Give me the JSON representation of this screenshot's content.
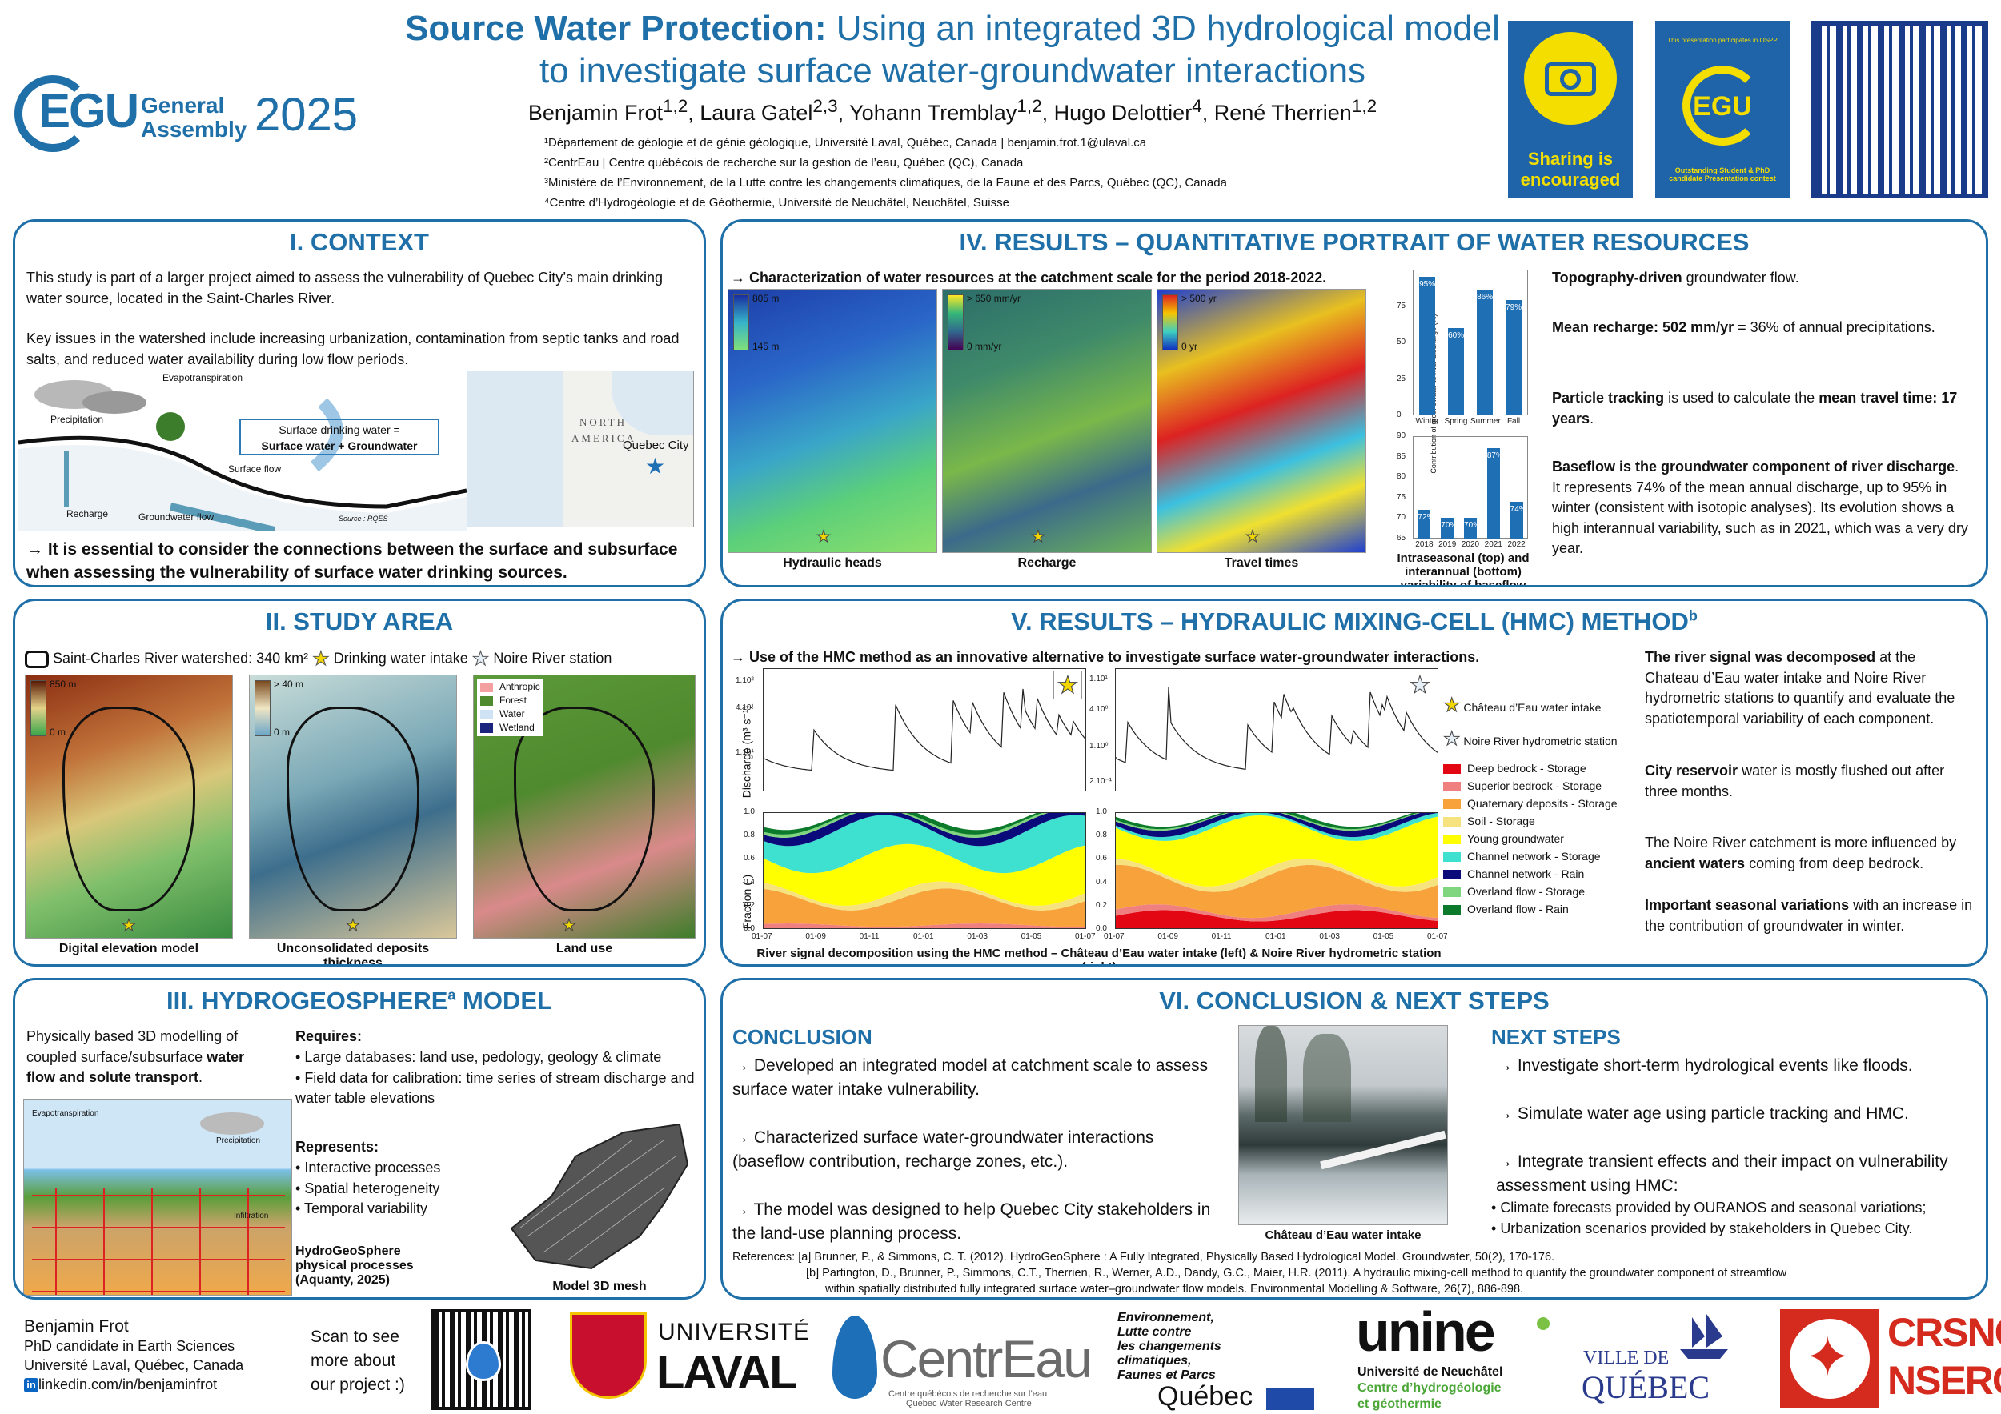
{
  "header": {
    "title_strong": "Source Water Protection:",
    "title_rest_1": "Using an integrated 3D hydrological model",
    "title_line_2": "to investigate surface water-groundwater interactions",
    "authors_html": "Benjamin Frot<sup>1,2</sup>, Laura Gatel<sup>2,3</sup>, Yohann Tremblay<sup>1,2</sup>, Hugo Delottier<sup>4</sup>, René Therrien<sup>1,2</sup>",
    "affiliations": [
      "¹Département de géologie et de génie géologique, Université Laval, Québec, Canada | benjamin.frot.1@ulaval.ca",
      "²CentrEau | Centre québécois de recherche sur la gestion de l’eau, Québec (QC), Canada",
      "³Ministère de l’Environnement, de la Lutte contre les changements climatiques, de la Faune et des Parcs, Québec (QC), Canada",
      "⁴Centre d’Hydrogéologie et de Géothermie, Université de Neuchâtel, Neuchâtel, Suisse"
    ],
    "egu_logo": {
      "text": "EGU",
      "sub1": "General",
      "sub2": "Assembly",
      "year": "2025"
    },
    "badge1": {
      "line1": "Sharing is",
      "line2": "encouraged",
      "icon": "camera-icon"
    },
    "badge2": {
      "top": "This presentation participates in OSPP",
      "mid": "EGU",
      "bottom": "Outstanding Student & PhD candidate Presentation contest"
    },
    "qr_icon": "qr-code-icon"
  },
  "context": {
    "title": "I. CONTEXT",
    "p1": "This study is part of a larger project aimed to assess the vulnerability of Quebec City’s main drinking water source, located in the Saint-Charles River.",
    "p2": "Key issues in the watershed include increasing urbanization, contamination from septic tanks and road salts, and reduced water availability during low flow periods.",
    "schema": {
      "evapotranspiration": "Evapotranspiration",
      "precipitation": "Precipitation",
      "recharge": "Recharge",
      "surface_flow": "Surface flow",
      "groundwater_flow": "Groundwater flow",
      "source": "Source : RQES",
      "box_line1": "Surface drinking water =",
      "box_line2": "Surface water + Groundwater"
    },
    "map": {
      "label1": "NORTH",
      "label2": "AMERICA",
      "city": "Quebec City"
    },
    "conclusion": "→ It is essential to consider the connections between the surface and subsurface when assessing the vulnerability of surface water drinking sources."
  },
  "study": {
    "title": "II. STUDY AREA",
    "legend_watershed": "Saint-Charles River watershed: 340 km²",
    "legend_intake": "Drinking water intake",
    "legend_station": "Noire River station",
    "maps": [
      {
        "caption": "Digital elevation model",
        "top": "850 m",
        "bottom": "0 m"
      },
      {
        "caption": "Unconsolidated deposits thickness",
        "top": "> 40 m",
        "bottom": "0 m"
      },
      {
        "caption": "Land use",
        "classes": [
          "Anthropic",
          "Forest",
          "Water",
          "Wetland"
        ],
        "colors": [
          "#f4a0a0",
          "#4f8a2e",
          "#cfe3f4",
          "#1a237e"
        ]
      }
    ]
  },
  "hgs": {
    "title_main": "III. HYDROGEOSPHERE",
    "title_sup": "a",
    "title_end": " MODEL",
    "intro": "Physically based 3D modelling of coupled surface/subsurface",
    "intro_b": "water flow and solute transport",
    "intro_end": ".",
    "requires_title": "Requires:",
    "requires": [
      "Large databases: land use, pedology, geology & climate",
      "Field data for calibration: time series of stream discharge and water table elevations"
    ],
    "represents_title": "Represents:",
    "represents": [
      "Interactive processes",
      "Spatial heterogeneity",
      "Temporal variability"
    ],
    "caption_processes": "HydroGeoSphere physical processes (Aquanty, 2025)",
    "caption_mesh": "Model 3D mesh",
    "schema_labels": {
      "evapotranspiration": "Evapotranspiration",
      "precipitation": "Precipitation",
      "infiltration": "Infiltration"
    }
  },
  "results4": {
    "title": "IV. RESULTS – QUANTITATIVE PORTRAIT OF WATER RESOURCES",
    "subtitle": "→ Characterization of water resources at the catchment scale for the period 2018-2022.",
    "maps": [
      {
        "caption": "Hydraulic heads",
        "top": "805 m",
        "bottom": "145 m"
      },
      {
        "caption": "Recharge",
        "top": "> 650 mm/yr",
        "bottom": "0 mm/yr"
      },
      {
        "caption": "Travel times",
        "top": "> 500 yr",
        "bottom": "0 yr"
      }
    ],
    "chart_caption": "Intraseasonal (top) and interannual (bottom) variability of baseflow",
    "ylabel": "Contribution of groundwater to river discharge (%)",
    "right": [
      {
        "b": "Topography-driven",
        "t": " groundwater flow."
      },
      {
        "b": "Mean recharge: 502 mm/yr",
        "t": " = 36% of annual precipitations."
      },
      {
        "b": "Particle tracking",
        "t": " is used to calculate the ",
        "b2": "mean travel time: 17 years",
        "t2": "."
      },
      {
        "b": "Baseflow is the groundwater component of river discharge",
        "t": ". It represents 74% of the mean annual discharge, up to 95% in winter (consistent with isotopic analyses). Its evolution shows a high interannual variability, such as in 2021, which was a very dry year."
      }
    ]
  },
  "chart_data": [
    {
      "type": "bar",
      "categories": [
        "Winter",
        "Spring",
        "Summer",
        "Fall"
      ],
      "values": [
        95,
        60,
        86,
        79
      ],
      "labels": [
        "95%",
        "60%",
        "86%",
        "79%"
      ],
      "ylim": [
        0,
        100
      ],
      "yticks": [
        0,
        25,
        50,
        75
      ],
      "ylabel": "Contribution of groundwater to river discharge (%)"
    },
    {
      "type": "bar",
      "categories": [
        "2018",
        "2019",
        "2020",
        "2021",
        "2022"
      ],
      "values": [
        72,
        70,
        70,
        87,
        74
      ],
      "labels": [
        "72%",
        "70%",
        "70%",
        "87%",
        "74%"
      ],
      "ylim": [
        65,
        90
      ],
      "yticks": [
        65,
        70,
        75,
        80,
        85,
        90
      ]
    }
  ],
  "results5": {
    "title": "V. RESULTS – HYDRAULIC MIXING-CELL (HMC) METHOD",
    "title_sup": "b",
    "subtitle": "→ Use of the HMC method as an innovative alternative to investigate surface water-groundwater interactions.",
    "left_yticks": [
      "1.10²",
      "4.10¹",
      "1.10¹"
    ],
    "right_yticks": [
      "1.10¹",
      "4.10⁰",
      "1.10⁰",
      "2.10⁻¹"
    ],
    "ylabel_top": "Discharge (m³ s⁻¹)",
    "ylabel_bottom": "Fraction (-)",
    "frac_ticks": [
      "1.0",
      "0.8",
      "0.6",
      "0.4",
      "0.2",
      "0.0"
    ],
    "xticks": [
      "01-07",
      "01-09",
      "01-11",
      "01-01",
      "01-03",
      "01-05",
      "01-07"
    ],
    "caption": "River signal decomposition using the HMC method – Château d’Eau water intake (left) & Noire River hydrometric station (right)",
    "legend_intake": "Château d’Eau water intake",
    "legend_station": "Noire River hydrometric station",
    "components": [
      {
        "name": "Deep bedrock - Storage",
        "color": "#e30613"
      },
      {
        "name": "Superior bedrock - Storage",
        "color": "#f08080"
      },
      {
        "name": "Quaternary deposits - Storage",
        "color": "#f7a23b"
      },
      {
        "name": "Soil - Storage",
        "color": "#f6e27f"
      },
      {
        "name": "Young groundwater",
        "color": "#ffff00"
      },
      {
        "name": "Channel network - Storage",
        "color": "#3ee0d0"
      },
      {
        "name": "Channel network - Rain",
        "color": "#0a0a7a"
      },
      {
        "name": "Overland flow - Storage",
        "color": "#7fd67f"
      },
      {
        "name": "Overland flow - Rain",
        "color": "#0b7a2a"
      }
    ],
    "right": [
      {
        "b": "The river signal was decomposed",
        "t": " at the Chateau d’Eau water intake and Noire River hydrometric stations to quantify and evaluate the spatiotemporal variability of each component."
      },
      {
        "b": "City reservoir",
        "t": " water is mostly flushed out after three months."
      },
      {
        "t": "The Noire River catchment is more influenced by ",
        "b2": "ancient waters",
        "t2": " coming from deep bedrock."
      },
      {
        "b": "Important seasonal variations",
        "t": " with an increase in the contribution of groundwater in winter."
      }
    ]
  },
  "conclusion": {
    "title": "VI. CONCLUSION & NEXT STEPS",
    "conc_title": "CONCLUSION",
    "conc": [
      "→ Developed an integrated model at catchment scale to assess surface water intake vulnerability.",
      "→ Characterized surface water-groundwater interactions (baseflow contribution, recharge zones, etc.).",
      "→ The model was designed to help Quebec City stakeholders in the land-use planning process."
    ],
    "photo_caption": "Château d’Eau water intake",
    "next_title": "NEXT STEPS",
    "next": [
      "→ Investigate short-term hydrological events like floods.",
      "→ Simulate water age using particle tracking and HMC.",
      "→ Integrate transient effects and their impact on vulnerability assessment using HMC:"
    ],
    "next_bullets": [
      "Climate forecasts provided by OURANOS and seasonal variations;",
      "Urbanization scenarios provided by stakeholders in Quebec City."
    ],
    "refs_a": "References: [a] Brunner, P., & Simmons, C. T. (2012). HydroGeoSphere : A Fully Integrated, Physically Based Hydrological Model. Groundwater, 50(2), 170-176.",
    "refs_b1": "[b] Partington, D., Brunner, P., Simmons, C.T., Therrien, R., Werner, A.D., Dandy, G.C., Maier, H.R. (2011). A hydraulic mixing-cell method to quantify the groundwater component of streamflow",
    "refs_b2": "within spatially distributed fully integrated surface water–groundwater flow models. Environmental Modelling & Software, 26(7), 886-898."
  },
  "footer": {
    "name": "Benjamin Frot",
    "role": "PhD candidate in Earth Sciences",
    "place": "Université Laval, Québec, Canada",
    "linkedin": "linkedin.com/in/benjaminfrot",
    "scan": [
      "Scan to see",
      "more about",
      "our project :)"
    ],
    "laval1": "UNIVERSITÉ",
    "laval2": "LAVAL",
    "centreau": "CentrEau",
    "centreau_sub1": "Centre québécois de recherche sur l’eau",
    "centreau_sub2": "Quebec Water Research Centre",
    "env_lines": [
      "Environnement,",
      "Lutte contre",
      "les changements",
      "climatiques,",
      "Faunes et Parcs"
    ],
    "quebec": "Québec",
    "unine": "unine",
    "unine_sub1": "Université de Neuchâtel",
    "unine_sub2": "Centre d’hydrogéologie",
    "unine_sub3": "et géothermie",
    "ville1": "VILLE DE",
    "ville2": "QUÉBEC",
    "crsng": "CRSNG",
    "nserc": "NSERC"
  }
}
